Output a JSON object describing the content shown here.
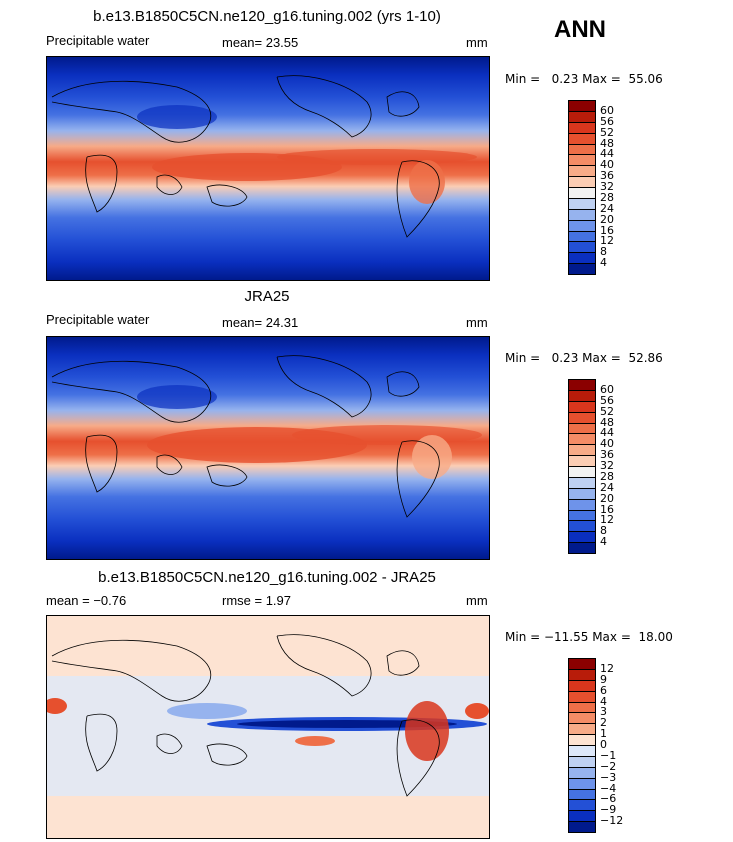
{
  "season": "ANN",
  "units": "mm",
  "panels": [
    {
      "title": "b.e13.B1850C5CN.ne120_g16.tuning.002 (yrs 1-10)",
      "left_label": "Precipitable water",
      "stat_label": "mean=  23.55",
      "units": "mm",
      "minmax": "Min =   0.23 Max =  55.06",
      "kind": "abs"
    },
    {
      "title": "JRA25",
      "left_label": "Precipitable water",
      "stat_label": "mean=  24.31",
      "units": "mm",
      "minmax": "Min =   0.23 Max =  52.86",
      "kind": "abs"
    },
    {
      "title": "b.e13.B1850C5CN.ne120_g16.tuning.002 - JRA25",
      "left_label": "mean =  −0.76",
      "stat_label": "rmse =   1.97",
      "units": "mm",
      "minmax": "Min = −11.55 Max =  18.00",
      "kind": "diff"
    }
  ],
  "colorbar_abs": {
    "labels": [
      "60",
      "56",
      "52",
      "48",
      "44",
      "40",
      "36",
      "32",
      "28",
      "24",
      "20",
      "16",
      "12",
      "8",
      "4"
    ],
    "colors": [
      "#8b0000",
      "#b81c0a",
      "#d9361d",
      "#e6502e",
      "#ee6f48",
      "#f48c66",
      "#f7ab88",
      "#fbcdb4",
      "#f2f2f2",
      "#bfd1f2",
      "#96b3ee",
      "#6e93ea",
      "#4572e2",
      "#2350d6",
      "#0a2fbf",
      "#001a8c"
    ]
  },
  "colorbar_diff": {
    "labels": [
      "12",
      "9",
      "6",
      "4",
      "3",
      "2",
      "1",
      "0",
      "−1",
      "−2",
      "−3",
      "−4",
      "−6",
      "−9",
      "−12"
    ],
    "colors": [
      "#8b0000",
      "#b81c0a",
      "#d9361d",
      "#e6502e",
      "#ee6f48",
      "#f48c66",
      "#f7ab88",
      "#fde3d2",
      "#dde8fa",
      "#bfd1f2",
      "#96b3ee",
      "#6e93ea",
      "#4572e2",
      "#2350d6",
      "#0a2fbf",
      "#001a8c"
    ]
  }
}
